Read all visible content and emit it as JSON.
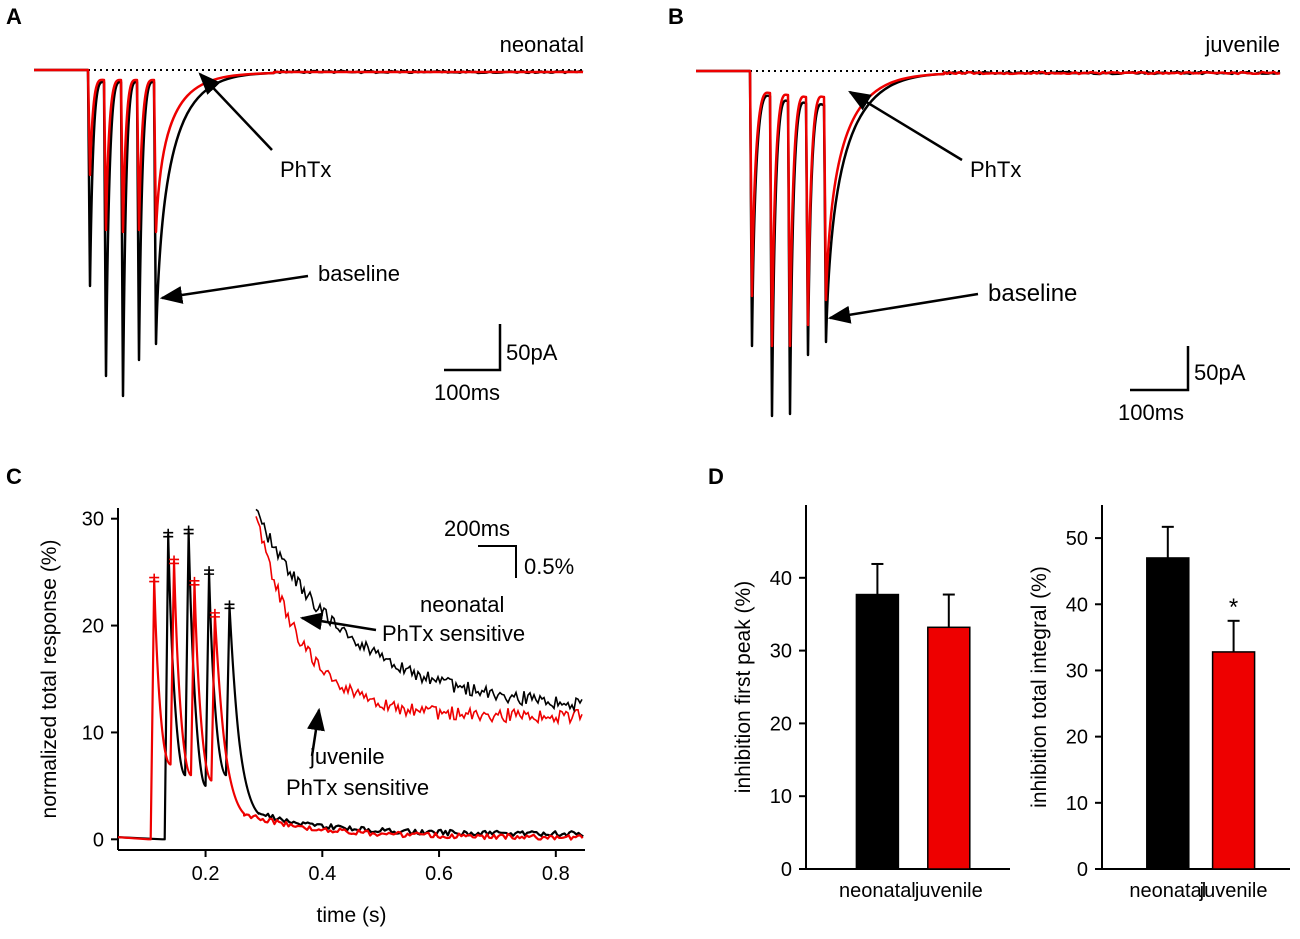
{
  "colors": {
    "black": "#000000",
    "red": "#ee0000"
  },
  "panels": {
    "A": {
      "panel_label": "A",
      "title": "neonatal",
      "arrow_phtx": "PhTx",
      "arrow_baseline": "baseline",
      "scale_y": "50pA",
      "scale_x": "100ms"
    },
    "B": {
      "panel_label": "B",
      "title": "juvenile",
      "arrow_phtx": "PhTx",
      "arrow_baseline": "baseline",
      "scale_y": "50pA",
      "scale_x": "100ms"
    },
    "C": {
      "panel_label": "C",
      "inset_scale_x": "200ms",
      "inset_scale_y": "0.5%",
      "legend_neonatal_1": "neonatal",
      "legend_neonatal_2": "PhTx sensitive",
      "legend_juvenile_1": "juvenile",
      "legend_juvenile_2": "PhTx sensitive"
    },
    "D": {
      "panel_label": "D"
    }
  },
  "chart_data": [
    {
      "type": "line",
      "panel": "C",
      "title": "",
      "xlabel": "time (s)",
      "ylabel": "normalized total response (%)",
      "xlim": [
        0.05,
        0.85
      ],
      "ylim": [
        -1,
        31
      ],
      "xticks": [
        0.2,
        0.4,
        0.6,
        0.8
      ],
      "xtick_labels": [
        "0.2",
        "0.4",
        "0.6",
        "0.8"
      ],
      "yticks": [
        0,
        10,
        20,
        30
      ],
      "ytick_labels": [
        "0",
        "10",
        "20",
        "30"
      ],
      "series": [
        {
          "name": "neonatal",
          "color": "#000000",
          "stim_times": [
            0.13,
            0.165,
            0.2,
            0.235
          ],
          "peaks": [
            28.5,
            28.8,
            25.0,
            21.8
          ],
          "troughs": [
            6.0,
            5.0,
            6.0
          ],
          "tail_start": 11.5,
          "tail_end": 0.5
        },
        {
          "name": "juvenile",
          "color": "#ee0000",
          "stim_times": [
            0.106,
            0.14,
            0.175,
            0.21
          ],
          "peaks": [
            24.3,
            26.0,
            24.0,
            21.0
          ],
          "troughs": [
            7.0,
            6.0,
            5.5
          ],
          "tail_start": 11.0,
          "tail_end": 0.2
        }
      ]
    },
    {
      "type": "bar",
      "panel": "D-left",
      "ylabel": "inhibition first peak (%)",
      "categories": [
        "neonatal",
        "juvenile"
      ],
      "values": [
        37.7,
        33.2
      ],
      "errors": [
        4.2,
        4.5
      ],
      "colors": [
        "#000000",
        "#ee0000"
      ],
      "ylim": [
        0,
        50
      ],
      "yticks": [
        0,
        10,
        20,
        30,
        40
      ],
      "ytick_labels": [
        "0",
        "10",
        "20",
        "30",
        "40"
      ]
    },
    {
      "type": "bar",
      "panel": "D-right",
      "ylabel": "inhibition total integral (%)",
      "categories": [
        "neonatal",
        "juvenile"
      ],
      "values": [
        47.0,
        32.8
      ],
      "errors": [
        4.7,
        4.7
      ],
      "colors": [
        "#000000",
        "#ee0000"
      ],
      "annotations": [
        "",
        "*"
      ],
      "ylim": [
        0,
        55
      ],
      "yticks": [
        0,
        10,
        20,
        30,
        40,
        50
      ],
      "ytick_labels": [
        "0",
        "10",
        "20",
        "30",
        "40",
        "50"
      ]
    }
  ]
}
